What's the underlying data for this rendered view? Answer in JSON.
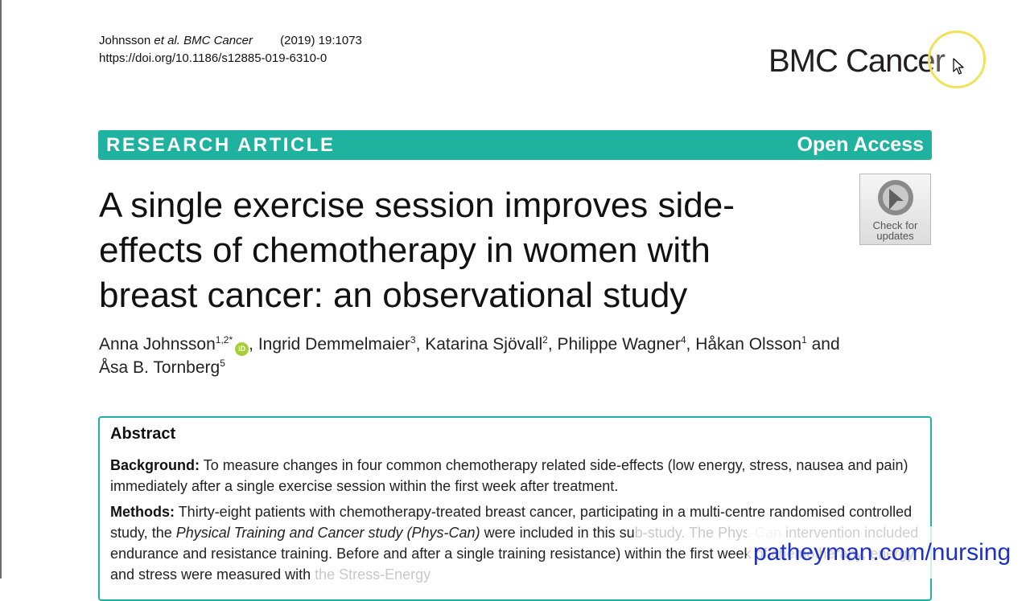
{
  "journal": {
    "authors_short": "Johnsson",
    "etal": "et al.",
    "journal_name": "BMC Cancer",
    "citation": "(2019) 19:1073",
    "doi": "https://doi.org/10.1186/s12885-019-6310-0",
    "logo_text": "BMC Cancer"
  },
  "banner": {
    "kind": "RESEARCH ARTICLE",
    "access": "Open Access",
    "color": "#1fb39f"
  },
  "article": {
    "title_line1": "A single exercise session improves side-",
    "title_line2": "effects of chemotherapy in women with",
    "title_line3": "breast cancer: an observational study"
  },
  "check_updates": {
    "line1": "Check for",
    "line2": "updates",
    "icon": "check-for-updates-badge-icon"
  },
  "authors": [
    {
      "name": "Anna Johnsson",
      "sup": "1,2*",
      "orcid": "iD"
    },
    {
      "name": "Ingrid Demmelmaier",
      "sup": "3"
    },
    {
      "name": "Katarina Sjövall",
      "sup": "2"
    },
    {
      "name": "Philippe Wagner",
      "sup": "4"
    },
    {
      "name": "Håkan Olsson",
      "sup": "1"
    },
    {
      "name": "Åsa B. Tornberg",
      "sup": "5"
    }
  ],
  "authors_and": "and",
  "abstract": {
    "heading": "Abstract",
    "background_label": "Background:",
    "background_text": "To measure changes in four common chemotherapy related side-effects (low energy, stress, nausea and pain) immediately after a single exercise session within the first week after treatment.",
    "methods_label": "Methods:",
    "methods_text_1": "Thirty-eight patients with chemotherapy-treated breast cancer, participating in a multi-centre randomised controlled study, the",
    "methods_study": "Physical Training and Cancer study (Phys-Can)",
    "methods_text_2": "were included in this su",
    "methods_text_2_faded": "b-study. The Phys-Can",
    "methods_text_3": "intervention included endurance and resistance training. Before and after a single training",
    "methods_text_4": "resistance) within the first week of chemotherapy, energy and stress were measured with",
    "methods_text_4_faded": "the Stress-Energy"
  },
  "watermark": "patheyman.com/nursing"
}
